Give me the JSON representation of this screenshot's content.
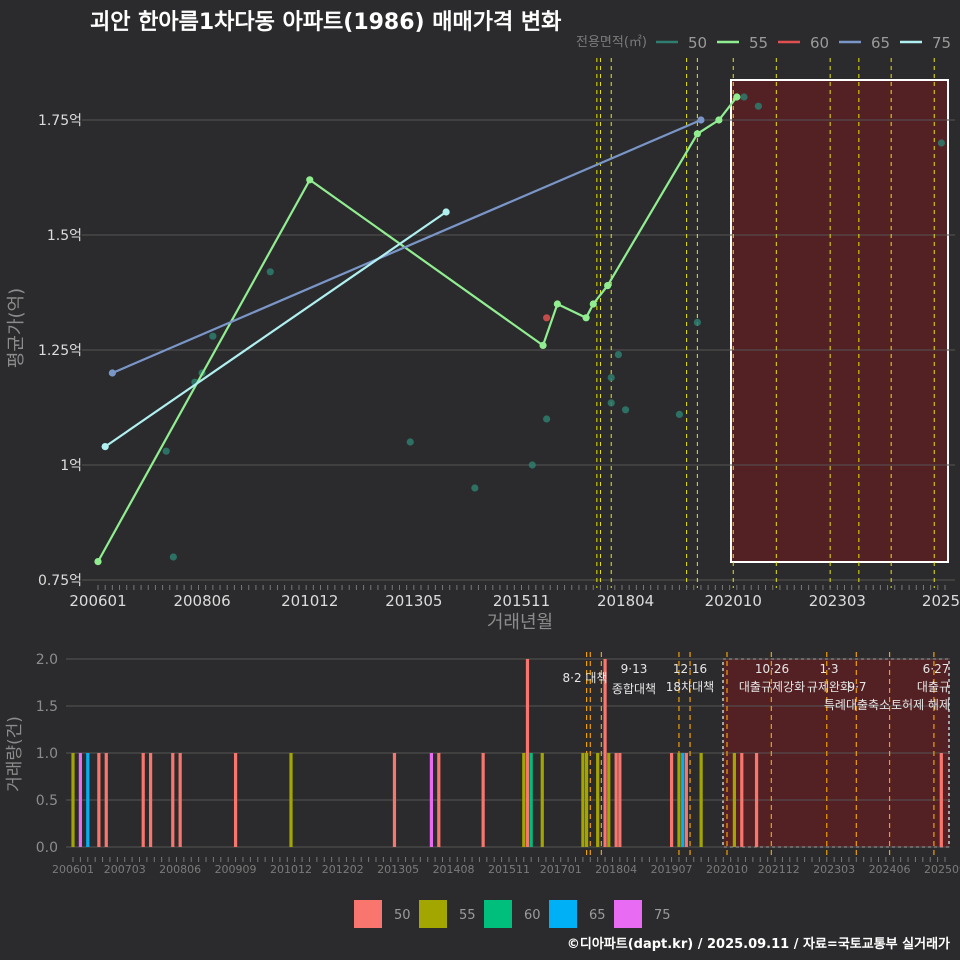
{
  "title": "괴안 한아름1차다동 아파트(1986) 매매가격 변화",
  "footer": "©디아파트(dapt.kr) / 2025.09.11 / 자료=국토교통부 실거래가",
  "colors": {
    "background": "#2b2b2d",
    "s50": "#2e7d6e",
    "s55": "#90ee90",
    "s60": "#e05050",
    "s65": "#7a96c8",
    "s75": "#b0f0f0",
    "b50": "#f8766d",
    "b55": "#a3a500",
    "b60": "#00bf7d",
    "b65": "#00b0f6",
    "b75": "#e76bf3",
    "vline_yellow": "#e8e800",
    "vline_orange": "#f0a000",
    "shade": "#5a1e22"
  },
  "chart_data": [
    {
      "type": "line",
      "title": "괴안 한아름1차다동 아파트(1986) 매매가격 변화",
      "xlabel": "거래년월",
      "ylabel": "평균가(억)",
      "x_ticks": [
        "200601",
        "200806",
        "201012",
        "201305",
        "201511",
        "201804",
        "202010",
        "202303",
        "2025"
      ],
      "y_ticks": [
        {
          "value": 0.75,
          "label": "0.75억"
        },
        {
          "value": 1.0,
          "label": "1억"
        },
        {
          "value": 1.25,
          "label": "1.25억"
        },
        {
          "value": 1.5,
          "label": "1.5억"
        },
        {
          "value": 1.75,
          "label": "1.75억"
        }
      ],
      "ylim": [
        0.72,
        1.85
      ],
      "x_range": [
        "200512",
        "202509"
      ],
      "legend_title": "전용면적(㎡)",
      "legend": [
        {
          "label": "50",
          "color_key": "s50"
        },
        {
          "label": "55",
          "color_key": "s55"
        },
        {
          "label": "60",
          "color_key": "s60"
        },
        {
          "label": "65",
          "color_key": "s65"
        },
        {
          "label": "75",
          "color_key": "s75"
        }
      ],
      "series": [
        {
          "name": "50",
          "color_key": "s50",
          "mode": "points",
          "points": [
            [
              "200708",
              1.03
            ],
            [
              "200710",
              0.8
            ],
            [
              "200804",
              1.18
            ],
            [
              "200806",
              1.2
            ],
            [
              "200809",
              1.28
            ],
            [
              "201001",
              1.42
            ],
            [
              "201304",
              1.05
            ],
            [
              "201410",
              0.95
            ],
            [
              "201602",
              1.0
            ],
            [
              "201606",
              1.1
            ],
            [
              "201712",
              1.19
            ],
            [
              "201712",
              1.135
            ],
            [
              "201802",
              1.24
            ],
            [
              "201804",
              1.12
            ],
            [
              "201907",
              1.11
            ],
            [
              "201912",
              1.31
            ],
            [
              "202101",
              1.8
            ],
            [
              "202105",
              1.78
            ],
            [
              "202508",
              1.7
            ]
          ]
        },
        {
          "name": "55",
          "color_key": "s55",
          "mode": "line",
          "points": [
            [
              "200601",
              0.79
            ],
            [
              "201012",
              1.62
            ],
            [
              "201605",
              1.26
            ],
            [
              "201609",
              1.35
            ],
            [
              "201705",
              1.32
            ],
            [
              "201707",
              1.35
            ],
            [
              "201711",
              1.39
            ],
            [
              "201912",
              1.72
            ],
            [
              "202006",
              1.75
            ],
            [
              "202011",
              1.8
            ]
          ]
        },
        {
          "name": "60",
          "color_key": "s60",
          "mode": "points",
          "points": [
            [
              "201606",
              1.32
            ]
          ]
        },
        {
          "name": "65",
          "color_key": "s65",
          "mode": "line",
          "points": [
            [
              "200605",
              1.2
            ],
            [
              "202001",
              1.75
            ]
          ]
        },
        {
          "name": "75",
          "color_key": "s75",
          "mode": "line",
          "points": [
            [
              "200603",
              1.04
            ],
            [
              "201402",
              1.55
            ]
          ]
        }
      ],
      "policy_lines": [
        {
          "date": "201708",
          "color_key": "vline_yellow"
        },
        {
          "date": "201709",
          "color_key": "vline_yellow"
        },
        {
          "date": "201712",
          "color_key": "vline_yellow"
        },
        {
          "date": "201909",
          "color_key": "vline_yellow"
        },
        {
          "date": "201912",
          "color_key": "vline_yellow"
        },
        {
          "date": "202010",
          "color_key": "vline_yellow"
        },
        {
          "date": "202110",
          "color_key": "vline_yellow"
        },
        {
          "date": "202301",
          "color_key": "vline_yellow"
        },
        {
          "date": "202309",
          "color_key": "vline_yellow"
        },
        {
          "date": "202406",
          "color_key": "vline_yellow"
        },
        {
          "date": "202506",
          "color_key": "vline_yellow"
        }
      ],
      "shaded_range": {
        "from": "202010",
        "to": "202509",
        "color_key": "shade"
      }
    },
    {
      "type": "bar",
      "ylabel": "거래량(건)",
      "y_ticks": [
        {
          "value": 0.0,
          "label": "0.0"
        },
        {
          "value": 0.5,
          "label": "0.5"
        },
        {
          "value": 1.0,
          "label": "1.0"
        },
        {
          "value": 1.5,
          "label": "1.5"
        },
        {
          "value": 2.0,
          "label": "2.0"
        }
      ],
      "ylim": [
        0,
        2.12
      ],
      "x_ticks": [
        "200601",
        "200703",
        "200806",
        "200909",
        "201012",
        "201202",
        "201305",
        "201408",
        "201511",
        "201701",
        "201804",
        "201907",
        "202010",
        "202112",
        "202303",
        "202406",
        "202509"
      ],
      "x_tick_labels": [
        "200601",
        "200703",
        "200806",
        "200909",
        "201012",
        "201202",
        "201305",
        "201408",
        "201511",
        "201701",
        "201804",
        "201907",
        "202010",
        "202112",
        "202303",
        "202406",
        "202509"
      ],
      "legend": [
        {
          "label": "50",
          "color_key": "b50"
        },
        {
          "label": "55",
          "color_key": "b55"
        },
        {
          "label": "60",
          "color_key": "b60"
        },
        {
          "label": "65",
          "color_key": "b65"
        },
        {
          "label": "75",
          "color_key": "b75"
        }
      ],
      "bars": [
        {
          "date": "200601",
          "value": 1,
          "color_key": "b55"
        },
        {
          "date": "200603",
          "value": 1,
          "color_key": "b75"
        },
        {
          "date": "200605",
          "value": 1,
          "color_key": "b65"
        },
        {
          "date": "200608",
          "value": 1,
          "color_key": "b50"
        },
        {
          "date": "200610",
          "value": 1,
          "color_key": "b50"
        },
        {
          "date": "200708",
          "value": 1,
          "color_key": "b50"
        },
        {
          "date": "200710",
          "value": 1,
          "color_key": "b50"
        },
        {
          "date": "200804",
          "value": 1,
          "color_key": "b50"
        },
        {
          "date": "200806",
          "value": 1,
          "color_key": "b50"
        },
        {
          "date": "200909",
          "value": 1,
          "color_key": "b50"
        },
        {
          "date": "201012",
          "value": 1,
          "color_key": "b55"
        },
        {
          "date": "201304",
          "value": 1,
          "color_key": "b50"
        },
        {
          "date": "201402",
          "value": 1,
          "color_key": "b75"
        },
        {
          "date": "201404",
          "value": 1,
          "color_key": "b50"
        },
        {
          "date": "201504",
          "value": 1,
          "color_key": "b50"
        },
        {
          "date": "201603",
          "value": 1,
          "color_key": "b55"
        },
        {
          "date": "201604",
          "value": 2,
          "color_key": "b50"
        },
        {
          "date": "201605",
          "value": 1,
          "color_key": "b60"
        },
        {
          "date": "201608",
          "value": 1,
          "color_key": "b55"
        },
        {
          "date": "201707",
          "value": 1,
          "color_key": "b55"
        },
        {
          "date": "201708",
          "value": 1,
          "color_key": "b55"
        },
        {
          "date": "201711",
          "value": 1,
          "color_key": "b55"
        },
        {
          "date": "201801",
          "value": 2,
          "color_key": "b50"
        },
        {
          "date": "201802",
          "value": 1,
          "color_key": "b55"
        },
        {
          "date": "201804",
          "value": 1,
          "color_key": "b50"
        },
        {
          "date": "201805",
          "value": 1,
          "color_key": "b50"
        },
        {
          "date": "201907",
          "value": 1,
          "color_key": "b50"
        },
        {
          "date": "201909",
          "value": 1,
          "color_key": "b55"
        },
        {
          "date": "201910",
          "value": 1,
          "color_key": "b65"
        },
        {
          "date": "201911",
          "value": 1,
          "color_key": "b50"
        },
        {
          "date": "202003",
          "value": 1,
          "color_key": "b55"
        },
        {
          "date": "202012",
          "value": 1,
          "color_key": "b55"
        },
        {
          "date": "202102",
          "value": 1,
          "color_key": "b50"
        },
        {
          "date": "202106",
          "value": 1,
          "color_key": "b50"
        },
        {
          "date": "202508",
          "value": 1,
          "color_key": "b50"
        }
      ],
      "policy_lines": [
        {
          "date": "201708",
          "color_key": "vline_orange"
        },
        {
          "date": "201709",
          "color_key": "vline_orange"
        },
        {
          "date": "201712",
          "color_key": "vline_orange"
        },
        {
          "date": "201909",
          "color_key": "vline_orange"
        },
        {
          "date": "201912",
          "color_key": "vline_orange"
        },
        {
          "date": "202010",
          "color_key": "vline_orange"
        },
        {
          "date": "202110",
          "color_key": "vline_orange"
        },
        {
          "date": "202301",
          "color_key": "vline_orange"
        },
        {
          "date": "202309",
          "color_key": "vline_orange"
        },
        {
          "date": "202406",
          "color_key": "vline_orange"
        },
        {
          "date": "202506",
          "color_key": "vline_orange"
        }
      ],
      "shaded_range": {
        "from": "202011",
        "to": "202509",
        "color_key": "shade"
      },
      "annotations": [
        {
          "date": "201708",
          "line1": "",
          "line2": "8·2 대책"
        },
        {
          "date": "201709",
          "line1": "9·13",
          "line2": "종합대책"
        },
        {
          "date": "201912",
          "line1": "12·16",
          "line2": "18차대책"
        },
        {
          "date": "202110",
          "line1": "10·26",
          "line2": "대출규제강화"
        },
        {
          "date": "202301",
          "line1": "1·3",
          "line2": "규제완화"
        },
        {
          "date": "202309",
          "line1": "",
          "line2": "9·7"
        },
        {
          "date": "202309",
          "line1": "",
          "line2": "특례대출축소"
        },
        {
          "date": "202406",
          "line1": "",
          "line2": "토허제 해제"
        },
        {
          "date": "202506",
          "line1": "6·27",
          "line2": "대출규"
        }
      ]
    }
  ]
}
